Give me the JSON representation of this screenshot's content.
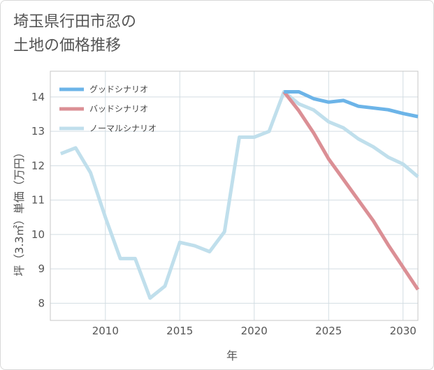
{
  "title_line1": "埼玉県行田市忍の",
  "title_line2": "土地の価格推移",
  "chart_data": {
    "type": "line",
    "xlabel": "年",
    "ylabel": "坪（3.3㎡）単価（万円）",
    "xlim": [
      2006.3,
      2031
    ],
    "ylim": [
      7.5,
      14.75
    ],
    "xticks": [
      2010,
      2015,
      2020,
      2025,
      2030
    ],
    "yticks": [
      8,
      9,
      10,
      11,
      12,
      13,
      14
    ],
    "grid": true,
    "legend_position": "top-left",
    "series": [
      {
        "name": "グッドシナリオ",
        "color": "#6cb4e8",
        "points": [
          [
            2022,
            14.15
          ],
          [
            2023,
            14.15
          ],
          [
            2024,
            13.95
          ],
          [
            2025,
            13.85
          ],
          [
            2026,
            13.9
          ],
          [
            2027,
            13.73
          ],
          [
            2028,
            13.68
          ],
          [
            2029,
            13.63
          ],
          [
            2030,
            13.52
          ],
          [
            2031,
            13.43
          ]
        ]
      },
      {
        "name": "バッドシナリオ",
        "color": "#db8f95",
        "points": [
          [
            2022,
            14.15
          ],
          [
            2023,
            13.6
          ],
          [
            2024,
            12.95
          ],
          [
            2025,
            12.2
          ],
          [
            2026,
            11.6
          ],
          [
            2027,
            11.0
          ],
          [
            2028,
            10.4
          ],
          [
            2029,
            9.7
          ],
          [
            2030,
            9.05
          ],
          [
            2031,
            8.4
          ]
        ]
      },
      {
        "name": "ノーマルシナリオ",
        "color": "#c0dfec",
        "points": [
          [
            2007,
            12.35
          ],
          [
            2008,
            12.52
          ],
          [
            2009,
            11.8
          ],
          [
            2010,
            10.5
          ],
          [
            2011,
            9.3
          ],
          [
            2012,
            9.3
          ],
          [
            2013,
            8.15
          ],
          [
            2014,
            8.5
          ],
          [
            2015,
            9.77
          ],
          [
            2016,
            9.67
          ],
          [
            2017,
            9.5
          ],
          [
            2018,
            10.08
          ],
          [
            2019,
            12.83
          ],
          [
            2020,
            12.83
          ],
          [
            2021,
            13.0
          ],
          [
            2022,
            14.15
          ],
          [
            2023,
            13.8
          ],
          [
            2024,
            13.62
          ],
          [
            2025,
            13.28
          ],
          [
            2026,
            13.1
          ],
          [
            2027,
            12.78
          ],
          [
            2028,
            12.55
          ],
          [
            2029,
            12.25
          ],
          [
            2030,
            12.05
          ],
          [
            2031,
            11.68
          ]
        ]
      }
    ]
  }
}
